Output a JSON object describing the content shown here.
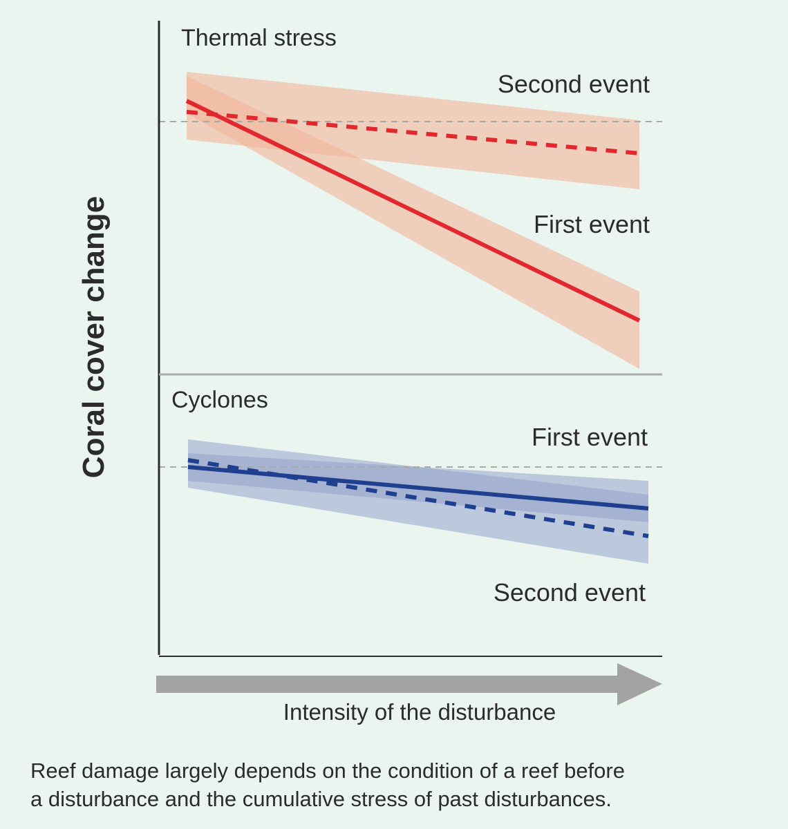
{
  "figure": {
    "ylabel": "Coral cover change",
    "xlabel": "Intensity of the disturbance",
    "caption_lines": [
      "Reef damage largely depends on the condition of a reef before",
      "a disturbance and the cumulative stress of past disturbances."
    ]
  },
  "colors": {
    "background": "#eaf5f0",
    "red": "#e0282e",
    "red_band": "#f2b79c",
    "blue": "#1f3f8f",
    "blue_band": "#8e9bc7",
    "axis": "#2b2b2b",
    "divider": "#a8aba9",
    "reference_line": "#a8a8a8",
    "arrow": "#a3a3a3"
  },
  "chart_data": [
    {
      "type": "line",
      "panel": "top",
      "title": "Thermal stress",
      "xlabel": "Intensity of the disturbance",
      "ylabel": "Coral cover change",
      "xlim": [
        0,
        1
      ],
      "ylim": [
        -1,
        0.5
      ],
      "reference_y": 0,
      "series": [
        {
          "name": "Second event",
          "style": "dashed",
          "x": [
            0,
            1
          ],
          "values": [
            0.07,
            -0.23
          ],
          "ci_lower": [
            -0.13,
            -0.49
          ],
          "ci_upper": [
            0.36,
            0.01
          ]
        },
        {
          "name": "First event",
          "style": "solid",
          "x": [
            0,
            1
          ],
          "values": [
            0.15,
            -1.44
          ],
          "ci_lower": [
            0.06,
            -1.79
          ],
          "ci_upper": [
            0.33,
            -1.23
          ]
        }
      ]
    },
    {
      "type": "line",
      "panel": "bottom",
      "title": "Cyclones",
      "xlabel": "Intensity of the disturbance",
      "ylabel": "Coral cover change",
      "xlim": [
        0,
        1
      ],
      "ylim": [
        -1,
        0.5
      ],
      "reference_y": 0,
      "series": [
        {
          "name": "First event",
          "style": "solid",
          "x": [
            0,
            1
          ],
          "values": [
            0.0,
            -0.3
          ],
          "ci_lower": [
            -0.1,
            -0.4
          ],
          "ci_upper": [
            0.1,
            -0.1
          ]
        },
        {
          "name": "Second event",
          "style": "dashed",
          "x": [
            0,
            1
          ],
          "values": [
            0.05,
            -0.5
          ],
          "ci_lower": [
            -0.15,
            -0.7
          ],
          "ci_upper": [
            0.2,
            -0.2
          ]
        }
      ]
    }
  ]
}
